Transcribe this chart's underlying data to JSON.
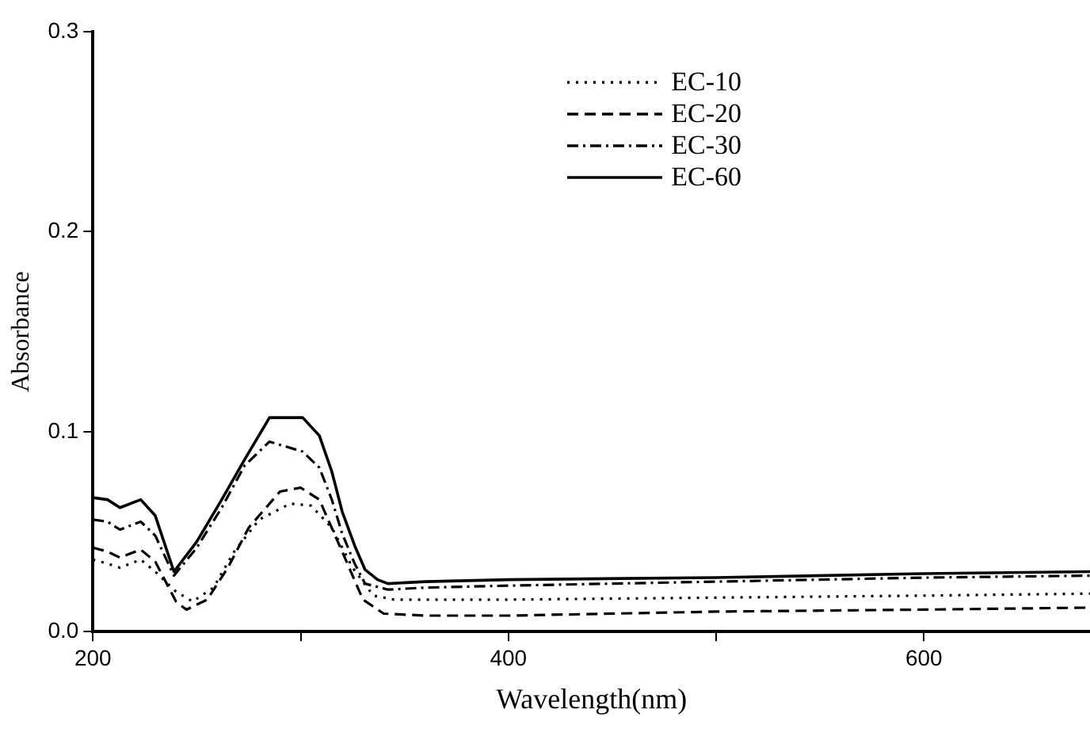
{
  "chart_data": {
    "type": "line",
    "xlabel": "Wavelength(nm)",
    "ylabel": "Absorbance",
    "xlim": [
      200,
      680
    ],
    "ylim": [
      0,
      0.3
    ],
    "xticks": [
      200,
      {
        "value": 300,
        "label": null
      },
      400,
      {
        "value": 500,
        "label": null
      },
      600
    ],
    "yticks": [
      {
        "value": 0,
        "label": "0.0"
      },
      0.1,
      0.2,
      0.3
    ],
    "grid": false,
    "legend": "top right",
    "marker": "none",
    "series": [
      {
        "name": "EC-10",
        "color": "#000000",
        "line_style": "dotted",
        "x": [
          200,
          207,
          213,
          223,
          230,
          240,
          248,
          258,
          268,
          280,
          295,
          305,
          315,
          325,
          335,
          345,
          400,
          500,
          600,
          680
        ],
        "values": [
          0.036,
          0.034,
          0.032,
          0.036,
          0.03,
          0.02,
          0.015,
          0.022,
          0.04,
          0.056,
          0.064,
          0.063,
          0.052,
          0.032,
          0.018,
          0.016,
          0.016,
          0.017,
          0.018,
          0.019
        ]
      },
      {
        "name": "EC-20",
        "color": "#000000",
        "line_style": "dashed",
        "x": [
          200,
          207,
          213,
          223,
          230,
          240,
          245,
          255,
          265,
          275,
          290,
          300,
          309,
          320,
          330,
          340,
          360,
          400,
          500,
          600,
          680
        ],
        "values": [
          0.042,
          0.04,
          0.037,
          0.041,
          0.035,
          0.015,
          0.011,
          0.016,
          0.032,
          0.052,
          0.07,
          0.072,
          0.066,
          0.04,
          0.016,
          0.009,
          0.008,
          0.008,
          0.01,
          0.011,
          0.012
        ]
      },
      {
        "name": "EC-30",
        "color": "#000000",
        "line_style": "dashdot",
        "x": [
          200,
          207,
          213,
          223,
          230,
          239,
          250,
          262,
          273,
          285,
          301,
          309,
          315,
          320,
          326,
          331,
          342,
          360,
          400,
          500,
          600,
          680
        ],
        "values": [
          0.056,
          0.055,
          0.051,
          0.055,
          0.048,
          0.028,
          0.042,
          0.062,
          0.083,
          0.095,
          0.09,
          0.082,
          0.066,
          0.049,
          0.034,
          0.024,
          0.021,
          0.022,
          0.023,
          0.025,
          0.027,
          0.028
        ]
      },
      {
        "name": "EC-60",
        "color": "#000000",
        "line_style": "solid",
        "x": [
          200,
          207,
          213,
          223,
          230,
          239,
          250,
          262,
          273,
          285,
          301,
          309,
          315,
          320,
          326,
          331,
          337,
          342,
          360,
          400,
          500,
          600,
          680
        ],
        "values": [
          0.067,
          0.066,
          0.062,
          0.066,
          0.058,
          0.03,
          0.045,
          0.066,
          0.086,
          0.107,
          0.107,
          0.098,
          0.08,
          0.06,
          0.043,
          0.031,
          0.026,
          0.024,
          0.025,
          0.026,
          0.027,
          0.029,
          0.03
        ]
      }
    ]
  }
}
